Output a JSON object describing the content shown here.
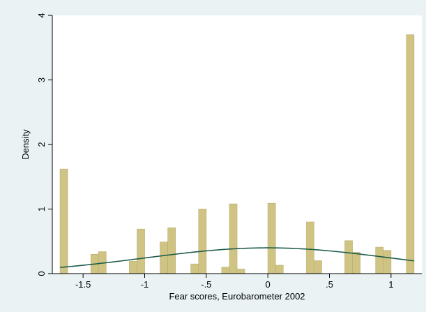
{
  "chart_data": {
    "type": "bar",
    "title": "",
    "xlabel": "Fear scores, Eurobarometer 2002",
    "ylabel": "Density",
    "xlim": [
      -1.75,
      1.25
    ],
    "ylim": [
      0,
      4
    ],
    "x_ticks": [
      -1.5,
      -1,
      -0.5,
      0,
      0.5,
      1
    ],
    "x_tick_labels": [
      "-1.5",
      "-1",
      "-.5",
      "0",
      ".5",
      "1"
    ],
    "y_ticks": [
      0,
      1,
      2,
      3,
      4
    ],
    "y_tick_labels": [
      "0",
      "1",
      "2",
      "3",
      "4"
    ],
    "grid": false,
    "legend": "none",
    "colors": {
      "bar_fill": "#cfc483",
      "bar_stroke": "#b8ae6c",
      "curve": "#1f5c4b",
      "page_bg": "#eaf2f3",
      "plot_bg": "#ffffff"
    },
    "bar_width": 0.0625,
    "bars": [
      {
        "x": -1.656,
        "height": 1.62
      },
      {
        "x": -1.406,
        "height": 0.3
      },
      {
        "x": -1.344,
        "height": 0.34
      },
      {
        "x": -1.094,
        "height": 0.19
      },
      {
        "x": -1.031,
        "height": 0.69
      },
      {
        "x": -0.844,
        "height": 0.49
      },
      {
        "x": -0.781,
        "height": 0.71
      },
      {
        "x": -0.594,
        "height": 0.15
      },
      {
        "x": -0.531,
        "height": 1.0
      },
      {
        "x": -0.344,
        "height": 0.1
      },
      {
        "x": -0.281,
        "height": 1.08
      },
      {
        "x": -0.219,
        "height": 0.07
      },
      {
        "x": 0.031,
        "height": 1.09
      },
      {
        "x": 0.094,
        "height": 0.13
      },
      {
        "x": 0.344,
        "height": 0.8
      },
      {
        "x": 0.406,
        "height": 0.2
      },
      {
        "x": 0.656,
        "height": 0.51
      },
      {
        "x": 0.719,
        "height": 0.33
      },
      {
        "x": 0.906,
        "height": 0.41
      },
      {
        "x": 0.969,
        "height": 0.36
      },
      {
        "x": 1.156,
        "height": 3.7
      }
    ],
    "normal_curve": {
      "mean": 0.0,
      "sd": 1.0
    }
  }
}
